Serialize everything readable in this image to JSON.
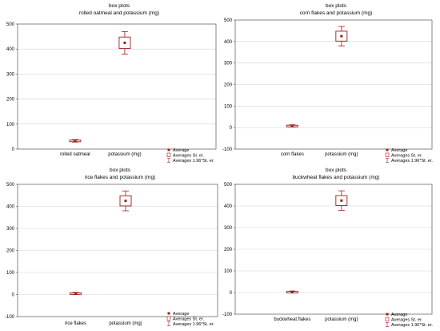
{
  "chart_data": [
    {
      "type": "box",
      "title": "box plots",
      "subtitle": "rolled oatmeal and potassium (mg)",
      "categories": [
        "rolled oatmeal",
        "potassium (mg)"
      ],
      "ylim": [
        0,
        500
      ],
      "yticks": [
        0,
        100,
        200,
        300,
        400,
        500
      ],
      "grid": true,
      "legend_position": "bottom-right",
      "boxes": [
        {
          "category": "rolled oatmeal",
          "mean": 33,
          "se_low": 30,
          "se_high": 36,
          "ci_low": 28,
          "ci_high": 38
        },
        {
          "category": "potassium (mg)",
          "mean": 425,
          "se_low": 402,
          "se_high": 448,
          "ci_low": 380,
          "ci_high": 470
        }
      ]
    },
    {
      "type": "box",
      "title": "box plots",
      "subtitle": "corn flakes and potassium (mg)",
      "categories": [
        "corn flakes",
        "potassium (mg)"
      ],
      "ylim": [
        -100,
        500
      ],
      "yticks": [
        -100,
        0,
        100,
        200,
        300,
        400,
        500
      ],
      "grid": true,
      "legend_position": "bottom-right",
      "boxes": [
        {
          "category": "corn flakes",
          "mean": 8,
          "se_low": 5,
          "se_high": 11,
          "ci_low": 3,
          "ci_high": 13
        },
        {
          "category": "potassium (mg)",
          "mean": 425,
          "se_low": 402,
          "se_high": 448,
          "ci_low": 380,
          "ci_high": 470
        }
      ]
    },
    {
      "type": "box",
      "title": "box plots",
      "subtitle": "rice flakes and potassium (mg)",
      "categories": [
        "rice flakes",
        "potassium (mg)"
      ],
      "ylim": [
        -100,
        500
      ],
      "yticks": [
        -100,
        0,
        100,
        200,
        300,
        400,
        500
      ],
      "grid": true,
      "legend_position": "bottom-right",
      "boxes": [
        {
          "category": "rice flakes",
          "mean": 5,
          "se_low": 2,
          "se_high": 8,
          "ci_low": 0,
          "ci_high": 10
        },
        {
          "category": "potassium (mg)",
          "mean": 425,
          "se_low": 402,
          "se_high": 448,
          "ci_low": 380,
          "ci_high": 470
        }
      ]
    },
    {
      "type": "box",
      "title": "box plots",
      "subtitle": "buckwheat flakes and potassium (mg)",
      "categories": [
        "buckwheat flakes",
        "potassium (mg)"
      ],
      "ylim": [
        -100,
        500
      ],
      "yticks": [
        -100,
        0,
        100,
        200,
        300,
        400,
        500
      ],
      "grid": true,
      "legend_position": "bottom-right",
      "boxes": [
        {
          "category": "buckwheat flakes",
          "mean": 3,
          "se_low": 1,
          "se_high": 5,
          "ci_low": -1,
          "ci_high": 7
        },
        {
          "category": "potassium (mg)",
          "mean": 425,
          "se_low": 402,
          "se_high": 448,
          "ci_low": 380,
          "ci_high": 470
        }
      ]
    }
  ],
  "legend": {
    "average": "Average",
    "se": "Averages St. er.",
    "ci": "Averages 1.96*St. er."
  },
  "colors": {
    "box": "#9e1b1b",
    "frame": "#555555",
    "grid": "#d4d4d4"
  }
}
